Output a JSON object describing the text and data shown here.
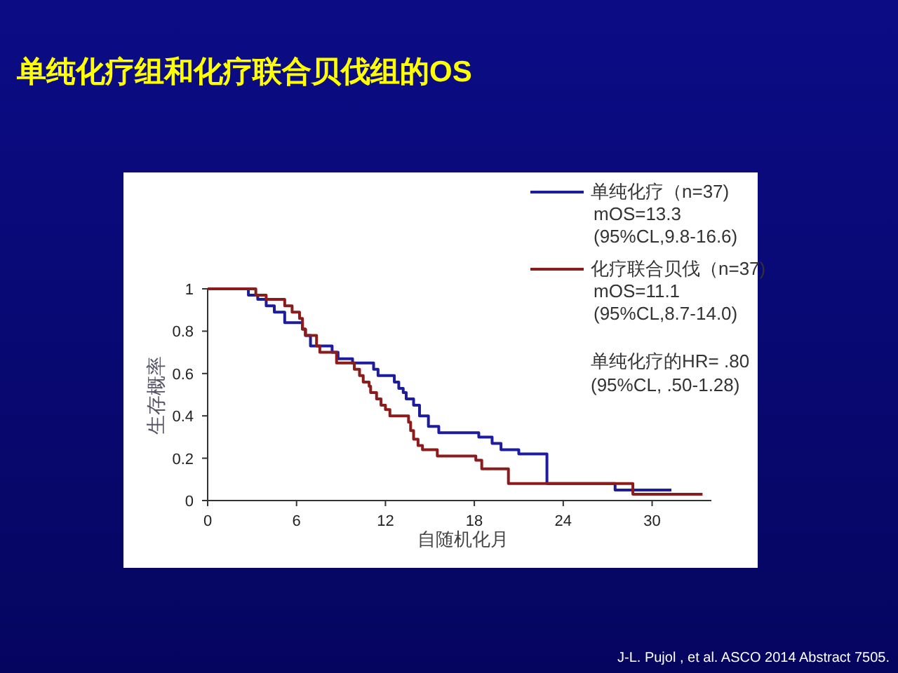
{
  "chart_data": {
    "type": "step",
    "title": "单纯化疗组和化疗联合贝伐组的OS",
    "xlabel": "自随机化月",
    "ylabel": "生存概率",
    "xlim": [
      0,
      34
    ],
    "xticks": [
      0,
      6,
      12,
      18,
      24,
      30
    ],
    "ylim": [
      0,
      1
    ],
    "yticks": [
      0,
      0.2,
      0.4,
      0.6,
      0.8,
      1
    ],
    "grid": false,
    "legend": "top right",
    "marker": "none",
    "line_style": "solid",
    "series": [
      {
        "name": "单纯化疗（n=37)",
        "color": "#1c1c9c",
        "x": [
          0,
          2.75,
          3.38,
          3.95,
          4.5,
          5.2,
          6.4,
          6.6,
          6.94,
          8.4,
          8.8,
          9.78,
          11.2,
          11.5,
          12.6,
          12.9,
          13.2,
          13.4,
          13.9,
          14.3,
          14.9,
          15.6,
          18.3,
          19.2,
          19.8,
          21.0,
          22.9,
          27.5,
          31.3
        ],
        "values": [
          1,
          0.97,
          0.95,
          0.92,
          0.89,
          0.84,
          0.81,
          0.78,
          0.73,
          0.7,
          0.67,
          0.65,
          0.62,
          0.59,
          0.56,
          0.53,
          0.51,
          0.48,
          0.45,
          0.4,
          0.35,
          0.32,
          0.3,
          0.27,
          0.24,
          0.22,
          0.08,
          0.05,
          0.05
        ]
      },
      {
        "name": "化疗联合贝伐（n=37)",
        "color": "#8c1c1c",
        "x": [
          0,
          3.25,
          3.95,
          5.2,
          5.7,
          6.2,
          6.4,
          6.6,
          7.35,
          7.57,
          8.7,
          9.9,
          10.25,
          10.5,
          10.9,
          11.0,
          11.4,
          11.7,
          12.0,
          12.3,
          13.56,
          13.7,
          13.9,
          14.2,
          14.5,
          15.5,
          18.1,
          18.5,
          20.3,
          28.7,
          33.4
        ],
        "values": [
          1,
          0.97,
          0.95,
          0.92,
          0.89,
          0.86,
          0.81,
          0.78,
          0.73,
          0.7,
          0.65,
          0.62,
          0.59,
          0.56,
          0.54,
          0.51,
          0.48,
          0.45,
          0.43,
          0.4,
          0.37,
          0.33,
          0.29,
          0.26,
          0.24,
          0.21,
          0.19,
          0.15,
          0.08,
          0.03,
          0.03
        ]
      }
    ],
    "annotations": [
      "mOS=13.3",
      "(95%CL,9.8-16.6)",
      "mOS=11.1",
      "(95%CL,8.7-14.0)",
      "单纯化疗的HR= .80",
      "(95%CL, .50-1.28)",
      "J-L. Pujol , et al. ASCO 2014 Abstract 7505."
    ]
  }
}
